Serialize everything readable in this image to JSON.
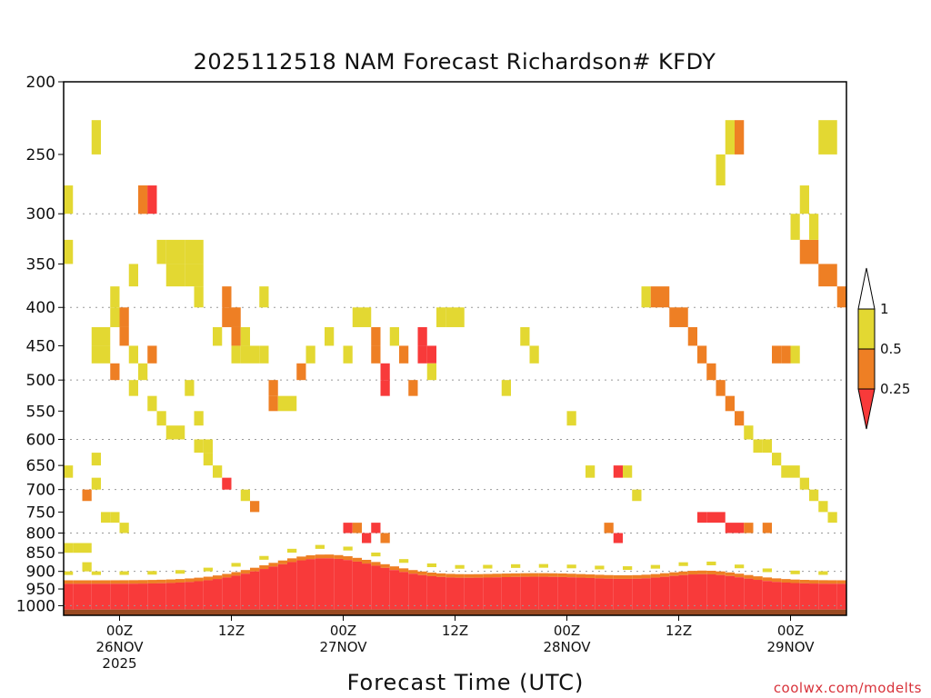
{
  "chart_data": {
    "type": "heatmap",
    "title": "2025112518 NAM Forecast Richardson# KFDY",
    "xlabel": "Forecast Time (UTC)",
    "ylabel": "",
    "credit": "coolwx.com/modelts",
    "y_axis": {
      "scale": "log-pressure",
      "range_hpa": [
        1030,
        200
      ],
      "tick_labels": [
        "200",
        "250",
        "300",
        "350",
        "400",
        "450",
        "500",
        "550",
        "600",
        "650",
        "700",
        "750",
        "800",
        "850",
        "900",
        "950",
        "1000"
      ],
      "gridlines_at": [
        300,
        400,
        500,
        600,
        700,
        800,
        900,
        1000
      ]
    },
    "x_axis": {
      "range_hours": [
        -6,
        78
      ],
      "ticks": [
        {
          "hour": 0,
          "line1": "00Z",
          "line2": "26NOV",
          "line3": "2025"
        },
        {
          "hour": 12,
          "line1": "12Z",
          "line2": "",
          "line3": ""
        },
        {
          "hour": 24,
          "line1": "00Z",
          "line2": "27NOV",
          "line3": ""
        },
        {
          "hour": 36,
          "line1": "12Z",
          "line2": "",
          "line3": ""
        },
        {
          "hour": 48,
          "line1": "00Z",
          "line2": "28NOV",
          "line3": ""
        },
        {
          "hour": 60,
          "line1": "12Z",
          "line2": "",
          "line3": ""
        },
        {
          "hour": 72,
          "line1": "00Z",
          "line2": "29NOV",
          "line3": ""
        }
      ]
    },
    "color_scale": [
      {
        "label": "1",
        "value": 1
      },
      {
        "label": "0.5",
        "value": 0.5
      },
      {
        "label": "0.25",
        "value": 0.25
      }
    ],
    "bins": [
      {
        "name": "0.5-1",
        "color": "#e3d832"
      },
      {
        "name": "0.25-0.5",
        "color": "#ee7f24"
      },
      {
        "name": "<0.25",
        "color": "#f83a3a"
      }
    ],
    "ground_color": "#9a4a22",
    "cell_size": {
      "hours": 1,
      "hpa": 25
    },
    "cells": [
      [
        -5.5,
        287.5,
        0
      ],
      [
        -5.5,
        337.5,
        0
      ],
      [
        -5.5,
        662.5,
        0
      ],
      [
        -5.5,
        837.5,
        0
      ],
      [
        -4.5,
        837.5,
        0
      ],
      [
        -3.5,
        837.5,
        0
      ],
      [
        -3.5,
        712.5,
        1
      ],
      [
        -3.5,
        887.5,
        0
      ],
      [
        -2.5,
        237.5,
        0
      ],
      [
        -2.5,
        637.5,
        0
      ],
      [
        -2.5,
        687.5,
        0
      ],
      [
        -2.5,
        462.5,
        0
      ],
      [
        -2.5,
        437.5,
        0
      ],
      [
        -1.5,
        437.5,
        0
      ],
      [
        -1.5,
        462.5,
        0
      ],
      [
        -1.5,
        762.5,
        0
      ],
      [
        -0.5,
        762.5,
        0
      ],
      [
        -0.5,
        412.5,
        0
      ],
      [
        -0.5,
        487.5,
        1
      ],
      [
        -0.5,
        387.5,
        0
      ],
      [
        0.5,
        437.5,
        1
      ],
      [
        0.5,
        412.5,
        1
      ],
      [
        0.5,
        787.5,
        0
      ],
      [
        1.5,
        362.5,
        0
      ],
      [
        1.5,
        462.5,
        0
      ],
      [
        1.5,
        512.5,
        0
      ],
      [
        2.5,
        287.5,
        1
      ],
      [
        2.5,
        287.5,
        1
      ],
      [
        3.5,
        287.5,
        2
      ],
      [
        2.5,
        487.5,
        0
      ],
      [
        3.5,
        462.5,
        1
      ],
      [
        3.5,
        537.5,
        0
      ],
      [
        4.5,
        337.5,
        0
      ],
      [
        4.5,
        562.5,
        0
      ],
      [
        5.5,
        337.5,
        0
      ],
      [
        5.5,
        362.5,
        0
      ],
      [
        5.5,
        587.5,
        0
      ],
      [
        6.5,
        337.5,
        0
      ],
      [
        6.5,
        362.5,
        0
      ],
      [
        6.5,
        587.5,
        0
      ],
      [
        7.5,
        337.5,
        0
      ],
      [
        7.5,
        362.5,
        0
      ],
      [
        7.5,
        512.5,
        0
      ],
      [
        8.5,
        337.5,
        0
      ],
      [
        8.5,
        362.5,
        0
      ],
      [
        8.5,
        387.5,
        0
      ],
      [
        8.5,
        562.5,
        0
      ],
      [
        8.5,
        612.5,
        0
      ],
      [
        9.5,
        612.5,
        0
      ],
      [
        9.5,
        637.5,
        0
      ],
      [
        10.5,
        437.5,
        0
      ],
      [
        10.5,
        662.5,
        0
      ],
      [
        11.5,
        387.5,
        1
      ],
      [
        11.5,
        412.5,
        1
      ],
      [
        11.5,
        687.5,
        2
      ],
      [
        12.5,
        412.5,
        1
      ],
      [
        12.5,
        437.5,
        1
      ],
      [
        12.5,
        462.5,
        0
      ],
      [
        13.5,
        437.5,
        0
      ],
      [
        13.5,
        462.5,
        0
      ],
      [
        13.5,
        712.5,
        0
      ],
      [
        14.5,
        462.5,
        0
      ],
      [
        14.5,
        737.5,
        1
      ],
      [
        15.5,
        462.5,
        0
      ],
      [
        15.5,
        387.5,
        0
      ],
      [
        16.5,
        512.5,
        1
      ],
      [
        16.5,
        537.5,
        1
      ],
      [
        17.5,
        537.5,
        0
      ],
      [
        18.5,
        537.5,
        0
      ],
      [
        19.5,
        487.5,
        1
      ],
      [
        20.5,
        462.5,
        0
      ],
      [
        22.5,
        437.5,
        0
      ],
      [
        24.5,
        462.5,
        0
      ],
      [
        25.5,
        412.5,
        0
      ],
      [
        26.5,
        412.5,
        0
      ],
      [
        27.5,
        437.5,
        1
      ],
      [
        27.5,
        462.5,
        1
      ],
      [
        28.5,
        487.5,
        2
      ],
      [
        28.5,
        512.5,
        2
      ],
      [
        29.5,
        437.5,
        0
      ],
      [
        30.5,
        462.5,
        1
      ],
      [
        31.5,
        512.5,
        1
      ],
      [
        32.5,
        462.5,
        2
      ],
      [
        32.5,
        437.5,
        2
      ],
      [
        33.5,
        462.5,
        2
      ],
      [
        33.5,
        487.5,
        0
      ],
      [
        34.5,
        412.5,
        0
      ],
      [
        35.5,
        412.5,
        0
      ],
      [
        36.5,
        412.5,
        0
      ],
      [
        41.5,
        512.5,
        0
      ],
      [
        43.5,
        437.5,
        0
      ],
      [
        44.5,
        462.5,
        0
      ],
      [
        48.5,
        562.5,
        0
      ],
      [
        50.5,
        662.5,
        0
      ],
      [
        53.5,
        662.5,
        2
      ],
      [
        54.5,
        662.5,
        0
      ],
      [
        55.5,
        712.5,
        0
      ],
      [
        56.5,
        387.5,
        0
      ],
      [
        57.5,
        387.5,
        1
      ],
      [
        58.5,
        387.5,
        1
      ],
      [
        59.5,
        412.5,
        1
      ],
      [
        60.5,
        412.5,
        1
      ],
      [
        61.5,
        437.5,
        1
      ],
      [
        62.5,
        462.5,
        1
      ],
      [
        63.5,
        487.5,
        1
      ],
      [
        64.5,
        512.5,
        1
      ],
      [
        65.5,
        537.5,
        1
      ],
      [
        66.5,
        562.5,
        1
      ],
      [
        67.5,
        587.5,
        0
      ],
      [
        68.5,
        612.5,
        0
      ],
      [
        69.5,
        612.5,
        0
      ],
      [
        70.5,
        637.5,
        0
      ],
      [
        71.5,
        662.5,
        0
      ],
      [
        72.5,
        662.5,
        0
      ],
      [
        73.5,
        687.5,
        0
      ],
      [
        74.5,
        712.5,
        0
      ],
      [
        75.5,
        737.5,
        0
      ],
      [
        76.5,
        762.5,
        0
      ],
      [
        73.5,
        337.5,
        1
      ],
      [
        74.5,
        337.5,
        1
      ],
      [
        75.5,
        362.5,
        1
      ],
      [
        76.5,
        362.5,
        1
      ],
      [
        77.5,
        387.5,
        1
      ],
      [
        72.5,
        312.5,
        0
      ],
      [
        73.5,
        287.5,
        0
      ],
      [
        74.5,
        312.5,
        0
      ],
      [
        75.5,
        237.5,
        0
      ],
      [
        76.5,
        237.5,
        0
      ],
      [
        64.5,
        262.5,
        0
      ],
      [
        65.5,
        237.5,
        0
      ],
      [
        66.5,
        237.5,
        1
      ],
      [
        70.5,
        462.5,
        1
      ],
      [
        71.5,
        462.5,
        1
      ],
      [
        72.5,
        462.5,
        0
      ]
    ]
  },
  "legend": {
    "labels": [
      "1",
      "0.5",
      "0.25"
    ]
  }
}
